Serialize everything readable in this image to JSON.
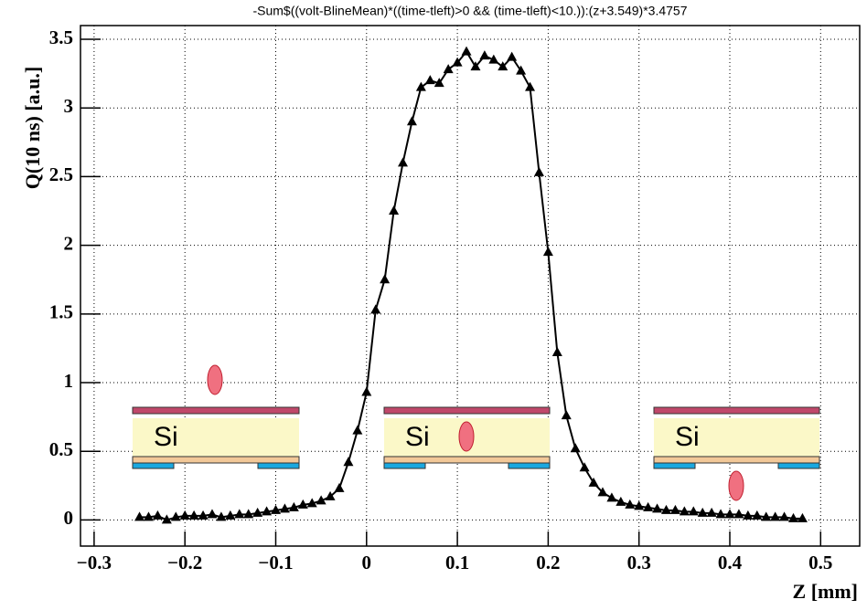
{
  "chart_data": {
    "type": "line",
    "title": "-Sum$((volt-BlineMean)*((time-tleft)>0 && (time-tleft)<10.)):(z+3.549)*3.4757",
    "x_label": "Z [mm]",
    "y_label": "Q(10 ns) [a.u.]",
    "annotations": [
      "Si",
      "Si",
      "Si"
    ],
    "x": [
      -0.25,
      -0.24,
      -0.23,
      -0.22,
      -0.21,
      -0.2,
      -0.19,
      -0.18,
      -0.17,
      -0.16,
      -0.15,
      -0.14,
      -0.13,
      -0.12,
      -0.11,
      -0.1,
      -0.09,
      -0.08,
      -0.07,
      -0.06,
      -0.05,
      -0.04,
      -0.03,
      -0.02,
      -0.01,
      0,
      0.01,
      0.02,
      0.03,
      0.04,
      0.05,
      0.06,
      0.07,
      0.08,
      0.09,
      0.1,
      0.11,
      0.12,
      0.13,
      0.14,
      0.15,
      0.16,
      0.17,
      0.18,
      0.19,
      0.2,
      0.21,
      0.22,
      0.23,
      0.24,
      0.25,
      0.26,
      0.27,
      0.28,
      0.29,
      0.3,
      0.31,
      0.32,
      0.33,
      0.34,
      0.35,
      0.36,
      0.37,
      0.38,
      0.39,
      0.4,
      0.41,
      0.42,
      0.43,
      0.44,
      0.45,
      0.46,
      0.47,
      0.48
    ],
    "series": [
      {
        "color": "#000000",
        "values": [
          0.02,
          0.02,
          0.03,
          0.0,
          0.02,
          0.03,
          0.03,
          0.03,
          0.04,
          0.02,
          0.03,
          0.04,
          0.04,
          0.05,
          0.06,
          0.07,
          0.08,
          0.09,
          0.11,
          0.12,
          0.14,
          0.17,
          0.23,
          0.42,
          0.65,
          0.93,
          1.53,
          1.75,
          2.25,
          2.6,
          2.9,
          3.15,
          3.2,
          3.18,
          3.28,
          3.33,
          3.41,
          3.3,
          3.38,
          3.35,
          3.3,
          3.37,
          3.27,
          3.15,
          2.53,
          1.95,
          1.22,
          0.76,
          0.52,
          0.38,
          0.27,
          0.2,
          0.16,
          0.13,
          0.11,
          0.1,
          0.09,
          0.08,
          0.07,
          0.07,
          0.06,
          0.06,
          0.05,
          0.05,
          0.04,
          0.04,
          0.04,
          0.03,
          0.03,
          0.02,
          0.02,
          0.02,
          0.01,
          0.01
        ]
      }
    ],
    "xlim": [
      -0.315,
      0.543
    ],
    "xticks": [
      {
        "value": -0.3,
        "label": "−0.3"
      },
      {
        "value": -0.2,
        "label": "−0.2"
      },
      {
        "value": -0.1,
        "label": "−0.1"
      },
      0,
      0.1,
      0.2,
      0.3,
      0.4,
      0.5
    ],
    "ylim": [
      -0.19,
      3.6
    ],
    "yticks": [
      0,
      0.5,
      1,
      1.5,
      2,
      2.5,
      3,
      3.5
    ],
    "grid": true
  }
}
